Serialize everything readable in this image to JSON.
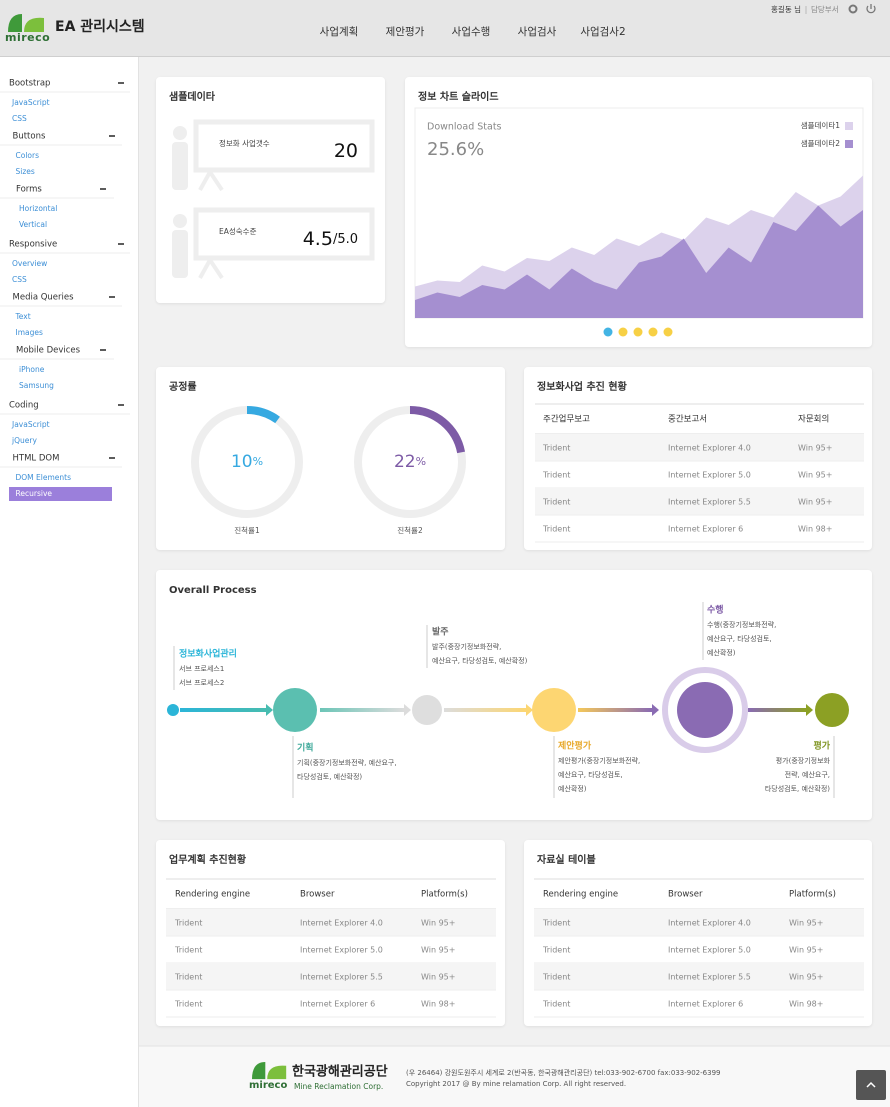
{
  "header": {
    "logo": "mireco",
    "title": "EA 관리시스템",
    "nav": [
      "사업계획",
      "제안평가",
      "사업수행",
      "사업검사",
      "사업검사2"
    ],
    "user": "홍길동 님",
    "department": "담당부서"
  },
  "sidebar": [
    {
      "title": "Bootstrap",
      "items": [
        "JavaScript",
        "CSS",
        {
          "title": "Buttons",
          "items": [
            "Colors",
            "Sizes",
            {
              "title": "Forms",
              "items": [
                "Horizontal",
                "Vertical"
              ]
            }
          ]
        }
      ]
    },
    {
      "title": "Responsive",
      "items": [
        "Overview",
        "CSS",
        {
          "title": "Media Queries",
          "items": [
            "Text",
            "Images",
            {
              "title": "Mobile Devices",
              "items": [
                "iPhone",
                "Samsung"
              ]
            }
          ]
        }
      ]
    },
    {
      "title": "Coding",
      "items": [
        "JavaScript",
        "jQuery",
        {
          "title": "HTML DOM",
          "items": [
            "DOM Elements",
            "Recursive"
          ]
        }
      ]
    }
  ],
  "sample_data": {
    "title": "샘플데이타",
    "items": [
      {
        "label": "정보화 사업갯수",
        "value": "20"
      },
      {
        "label": "EA성숙수준",
        "value": "4.5",
        "suffix": "/5.0"
      }
    ]
  },
  "info_chart": {
    "title": "정보 차트 슬라이드",
    "chart_data": {
      "type": "area",
      "title": "Download Stats",
      "stat": "25.6%",
      "ylim": [
        0,
        100
      ],
      "series": [
        {
          "name": "샘플데이타1",
          "color": "#dcd2ec",
          "values": [
            21,
            25,
            24,
            35,
            31,
            40,
            38,
            47,
            42,
            53,
            48,
            57,
            52,
            67,
            62,
            72,
            67,
            84,
            75,
            81,
            95
          ]
        },
        {
          "name": "샘플데이타2",
          "color": "#a58fd0",
          "values": [
            12,
            17,
            14,
            22,
            19,
            29,
            19,
            33,
            24,
            19,
            37,
            41,
            53,
            30,
            47,
            37,
            64,
            58,
            75,
            61,
            72
          ]
        }
      ]
    }
  },
  "progress": {
    "title": "공정률",
    "items": [
      {
        "value": 10,
        "unit": "%",
        "label": "진척률1",
        "color": "#36a9e1"
      },
      {
        "value": 22,
        "unit": "%",
        "label": "진척률2",
        "color": "#7d5ba6"
      }
    ]
  },
  "status_table": {
    "title": "정보화사업 추진 현황",
    "headers": [
      "주간업무보고",
      "중간보고서",
      "자문회의"
    ],
    "rows": [
      [
        "Trident",
        "Internet Explorer 4.0",
        "Win 95+"
      ],
      [
        "Trident",
        "Internet Explorer 5.0",
        "Win 95+"
      ],
      [
        "Trident",
        "Internet Explorer 5.5",
        "Win 95+"
      ],
      [
        "Trident",
        "Internet Explorer 6",
        "Win 98+"
      ]
    ]
  },
  "process": {
    "title": "Overall Process",
    "steps": [
      {
        "title": "정보화사업관리",
        "lines": [
          "서브 프로세스1",
          "서브 프로세스2"
        ]
      },
      {
        "title": "기획",
        "lines": [
          "기획(중장기정보화전략, 예산요구,",
          "타당성검토, 예산확정)"
        ]
      },
      {
        "title": "발주",
        "lines": [
          "발주(중장기정보화전략,",
          "예산요구, 타당성검토, 예산확정)"
        ]
      },
      {
        "title": "제안평가",
        "lines": [
          "제안평가(중장기정보화전략,",
          "예산요구, 타당성검토,",
          "예산확정)"
        ]
      },
      {
        "title": "수행",
        "lines": [
          "수행(중장기정보화전략,",
          "예산요구, 타당성검토,",
          "예산확정)"
        ]
      },
      {
        "title": "평가",
        "lines": [
          "평가(중장기정보화",
          "전략, 예산요구,",
          "타당성검토, 예산확정)"
        ]
      }
    ]
  },
  "plan_table": {
    "title": "업무계획 추진현황",
    "headers": [
      "Rendering engine",
      "Browser",
      "Platform(s)"
    ],
    "rows": [
      [
        "Trident",
        "Internet Explorer 4.0",
        "Win 95+"
      ],
      [
        "Trident",
        "Internet Explorer 5.0",
        "Win 95+"
      ],
      [
        "Trident",
        "Internet Explorer 5.5",
        "Win 95+"
      ],
      [
        "Trident",
        "Internet Explorer 6",
        "Win 98+"
      ]
    ]
  },
  "archive_table": {
    "title": "자료실 테이블",
    "headers": [
      "Rendering engine",
      "Browser",
      "Platform(s)"
    ],
    "rows": [
      [
        "Trident",
        "Internet Explorer 4.0",
        "Win 95+"
      ],
      [
        "Trident",
        "Internet Explorer 5.0",
        "Win 95+"
      ],
      [
        "Trident",
        "Internet Explorer 5.5",
        "Win 95+"
      ],
      [
        "Trident",
        "Internet Explorer 6",
        "Win 98+"
      ]
    ]
  },
  "footer": {
    "logo": "mireco",
    "org": "한국광해관리공단",
    "org_en": "Mine Reclamation Corp.",
    "address": "(우 26464) 강원도원주시 세계로 2(반곡동, 한국광해관리공단) tel:033-902-6700 fax:033-902-6399",
    "copyright": "Copyright 2017 @ By mine relamation Corp. All right reserved."
  }
}
